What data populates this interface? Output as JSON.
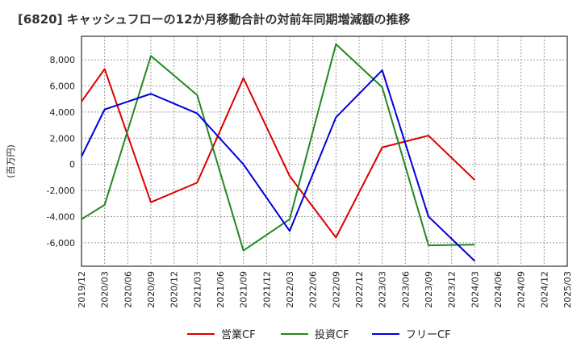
{
  "chart_data": {
    "type": "line",
    "title": "[6820]  キャッシュフローの12か月移動合計の対前年同期増減額の推移",
    "ylabel": "(百万円)",
    "xlabel": "",
    "ylim": [
      -7800,
      9800
    ],
    "yticks": [
      -6000,
      -4000,
      -2000,
      0,
      2000,
      4000,
      6000,
      8000
    ],
    "ytick_labels": [
      "-6,000",
      "-4,000",
      "-2,000",
      "0",
      "2,000",
      "4,000",
      "6,000",
      "8,000"
    ],
    "categories": [
      "2019/12",
      "2020/03",
      "2020/06",
      "2020/09",
      "2020/12",
      "2021/03",
      "2021/06",
      "2021/09",
      "2021/12",
      "2022/03",
      "2022/06",
      "2022/09",
      "2022/12",
      "2023/03",
      "2023/06",
      "2023/09",
      "2023/12",
      "2024/03",
      "2024/06",
      "2024/09",
      "2024/12",
      "2025/03"
    ],
    "grid": true,
    "legend_position": "bottom",
    "series": [
      {
        "name": "営業CF",
        "color": "#dd0000",
        "values": [
          4800,
          7300,
          null,
          -2900,
          null,
          -1400,
          null,
          6600,
          null,
          -900,
          null,
          -5600,
          null,
          1300,
          null,
          2200,
          null,
          -1200,
          null,
          null,
          null,
          null
        ]
      },
      {
        "name": "投資CF",
        "color": "#228822",
        "values": [
          -4200,
          -3100,
          null,
          8300,
          null,
          5300,
          null,
          -6600,
          null,
          -4200,
          null,
          9200,
          null,
          5900,
          null,
          -6200,
          null,
          -6150,
          null,
          null,
          null,
          null
        ]
      },
      {
        "name": "フリーCF",
        "color": "#0000dd",
        "values": [
          600,
          4200,
          null,
          5400,
          null,
          3900,
          null,
          0,
          null,
          -5100,
          null,
          3600,
          null,
          7200,
          null,
          -4000,
          null,
          -7400,
          null,
          null,
          null,
          null
        ]
      }
    ]
  }
}
